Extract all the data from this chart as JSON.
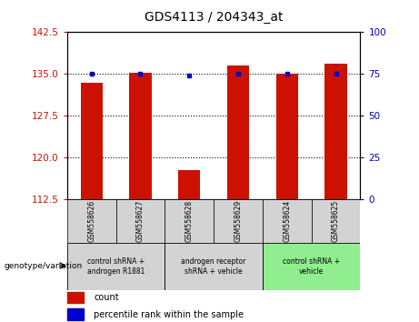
{
  "title": "GDS4113 / 204343_at",
  "samples": [
    "GSM558626",
    "GSM558627",
    "GSM558628",
    "GSM558629",
    "GSM558624",
    "GSM558625"
  ],
  "counts": [
    133.5,
    135.2,
    117.8,
    136.5,
    135.1,
    136.8
  ],
  "percentile_ranks": [
    75,
    75,
    74,
    75,
    75,
    75
  ],
  "ylim_left": [
    112.5,
    142.5
  ],
  "ylim_right": [
    0,
    100
  ],
  "yticks_left": [
    112.5,
    120,
    127.5,
    135,
    142.5
  ],
  "yticks_right": [
    0,
    25,
    50,
    75,
    100
  ],
  "bar_color": "#cc1100",
  "dot_color": "#0000cc",
  "bar_width": 0.45,
  "left_tick_color": "#cc1100",
  "right_tick_color": "#0000cc",
  "legend_count_label": "count",
  "legend_percentile_label": "percentile rank within the sample",
  "sample_bg_color": "#d3d3d3",
  "group_info": [
    {
      "start": 0,
      "end": 1,
      "label": "control shRNA +\nandrogen R1881",
      "color": "#d3d3d3"
    },
    {
      "start": 2,
      "end": 3,
      "label": "androgen receptor\nshRNA + vehicle",
      "color": "#d3d3d3"
    },
    {
      "start": 4,
      "end": 5,
      "label": "control shRNA +\nvehicle",
      "color": "#90EE90"
    }
  ]
}
